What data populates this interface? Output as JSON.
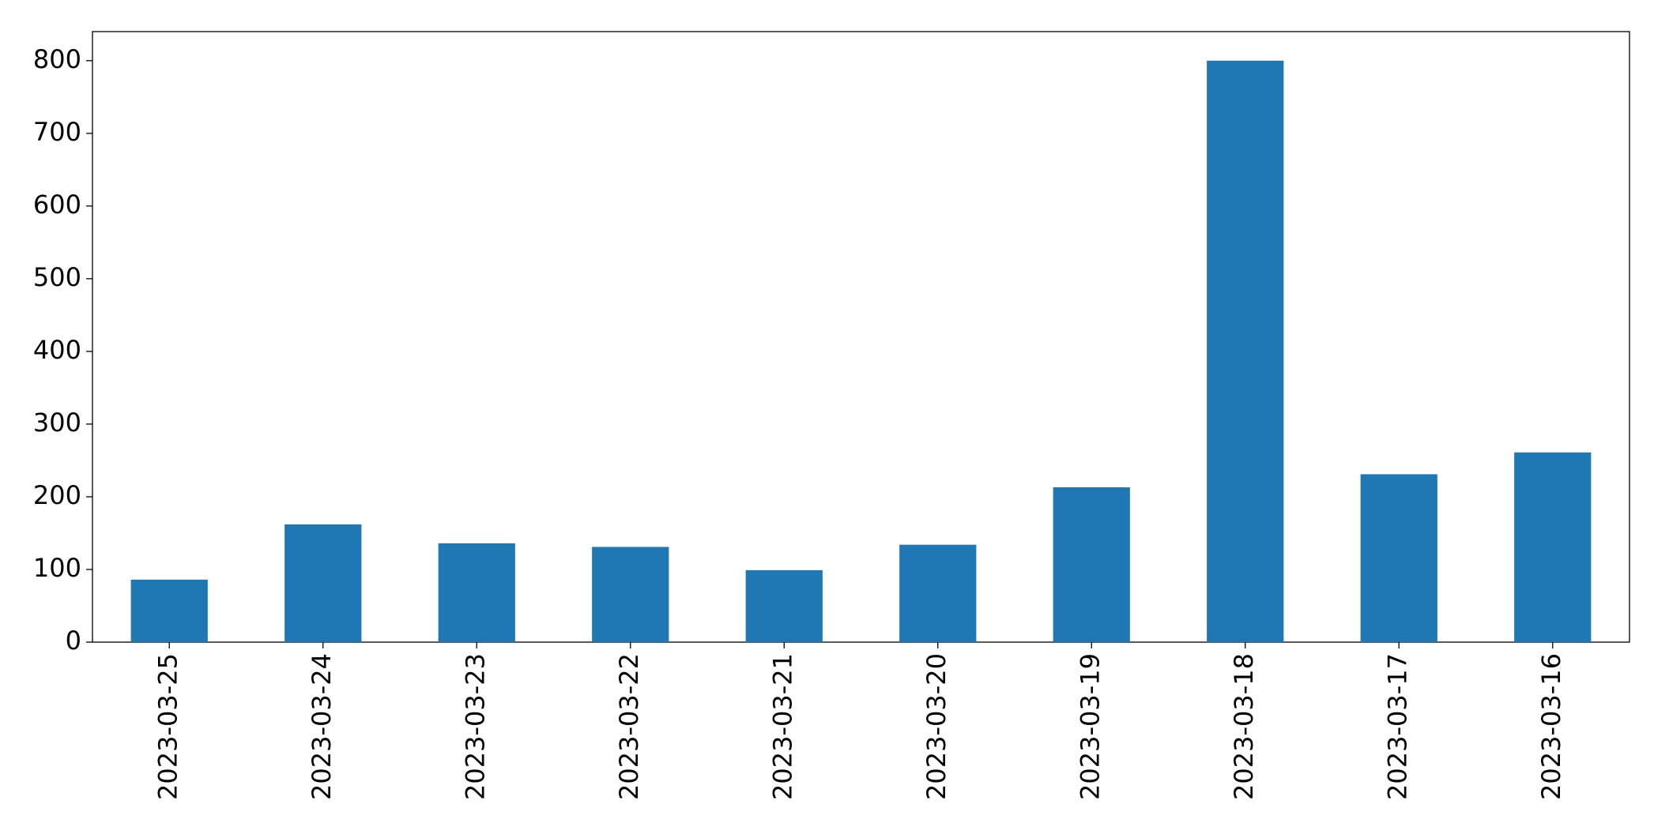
{
  "chart_data": {
    "type": "bar",
    "categories": [
      "2023-03-25",
      "2023-03-24",
      "2023-03-23",
      "2023-03-22",
      "2023-03-21",
      "2023-03-20",
      "2023-03-19",
      "2023-03-18",
      "2023-03-17",
      "2023-03-16"
    ],
    "values": [
      86,
      162,
      136,
      131,
      99,
      134,
      213,
      800,
      231,
      261
    ],
    "color": "#1f77b4",
    "ylim": [
      0,
      840
    ],
    "yticks": [
      0,
      100,
      200,
      300,
      400,
      500,
      600,
      700,
      800
    ],
    "grid": false
  }
}
